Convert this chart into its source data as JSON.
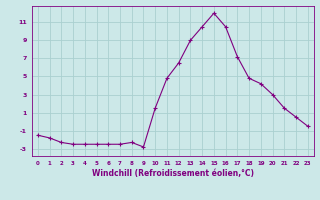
{
  "x": [
    0,
    1,
    2,
    3,
    4,
    5,
    6,
    7,
    8,
    9,
    10,
    11,
    12,
    13,
    14,
    15,
    16,
    17,
    18,
    19,
    20,
    21,
    22,
    23
  ],
  "y": [
    -1.5,
    -1.8,
    -2.3,
    -2.5,
    -2.5,
    -2.5,
    -2.5,
    -2.5,
    -2.3,
    -2.8,
    1.5,
    4.8,
    6.5,
    9.0,
    10.5,
    12.0,
    10.5,
    7.2,
    4.8,
    4.2,
    3.0,
    1.5,
    0.5,
    -0.5
  ],
  "line_color": "#800080",
  "marker": "+",
  "marker_size": 3,
  "bg_color": "#cce8e8",
  "grid_color": "#aad0d0",
  "xlabel": "Windchill (Refroidissement éolien,°C)",
  "xlabel_fontsize": 5.5,
  "yticks": [
    -3,
    -1,
    1,
    3,
    5,
    7,
    9,
    11
  ],
  "xticks": [
    0,
    1,
    2,
    3,
    4,
    5,
    6,
    7,
    8,
    9,
    10,
    11,
    12,
    13,
    14,
    15,
    16,
    17,
    18,
    19,
    20,
    21,
    22,
    23
  ],
  "ylim": [
    -3.8,
    12.8
  ],
  "xlim": [
    -0.5,
    23.5
  ]
}
